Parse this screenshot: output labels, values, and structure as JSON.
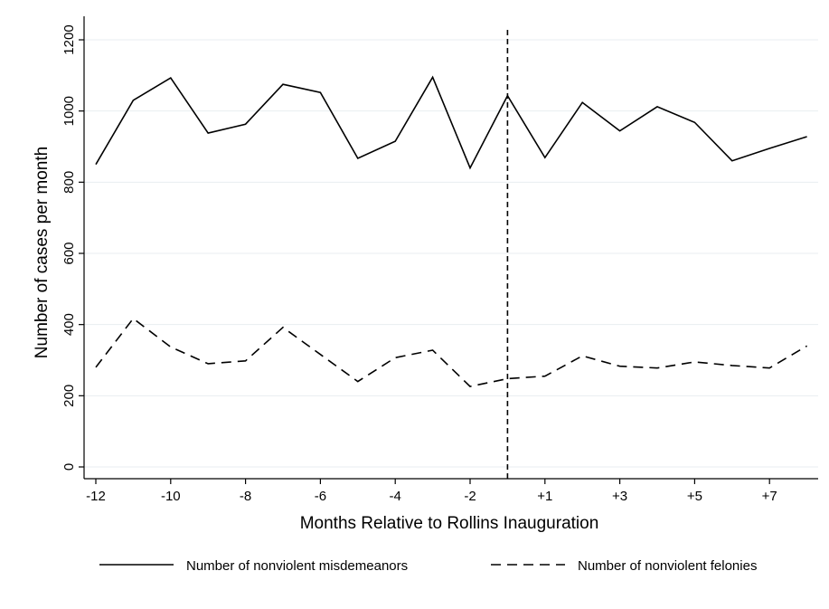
{
  "chart_data": {
    "type": "line",
    "xlabel": "Months Relative to Rollins Inauguration",
    "ylabel": "Number of cases per month",
    "x": [
      -12,
      -11,
      -10,
      -9,
      -8,
      -7,
      -6,
      -5,
      -4,
      -3,
      -2,
      -1,
      1,
      2,
      3,
      4,
      5,
      6,
      7,
      8
    ],
    "x_tick_labels": [
      "-12",
      "-10",
      "-8",
      "-6",
      "-4",
      "-2",
      "+1",
      "+3",
      "+5",
      "+7"
    ],
    "y_ticks": [
      0,
      200,
      400,
      600,
      800,
      1000,
      1200
    ],
    "ylim": [
      0,
      1200
    ],
    "grid": "horizontal",
    "vertical_reference_line": "between -1 and +1",
    "legend_position": "bottom",
    "series": [
      {
        "name": "Number of nonviolent misdemeanors",
        "style": "solid",
        "values": [
          850,
          1030,
          1093,
          938,
          963,
          1075,
          1052,
          867,
          915,
          1095,
          840,
          1043,
          869,
          1024,
          944,
          1012,
          968,
          860,
          895,
          928
        ]
      },
      {
        "name": "Number of nonviolent felonies",
        "style": "dashed",
        "values": [
          280,
          417,
          337,
          290,
          298,
          392,
          316,
          240,
          307,
          328,
          226,
          248,
          255,
          312,
          283,
          278,
          295,
          285,
          278,
          340
        ]
      }
    ]
  }
}
